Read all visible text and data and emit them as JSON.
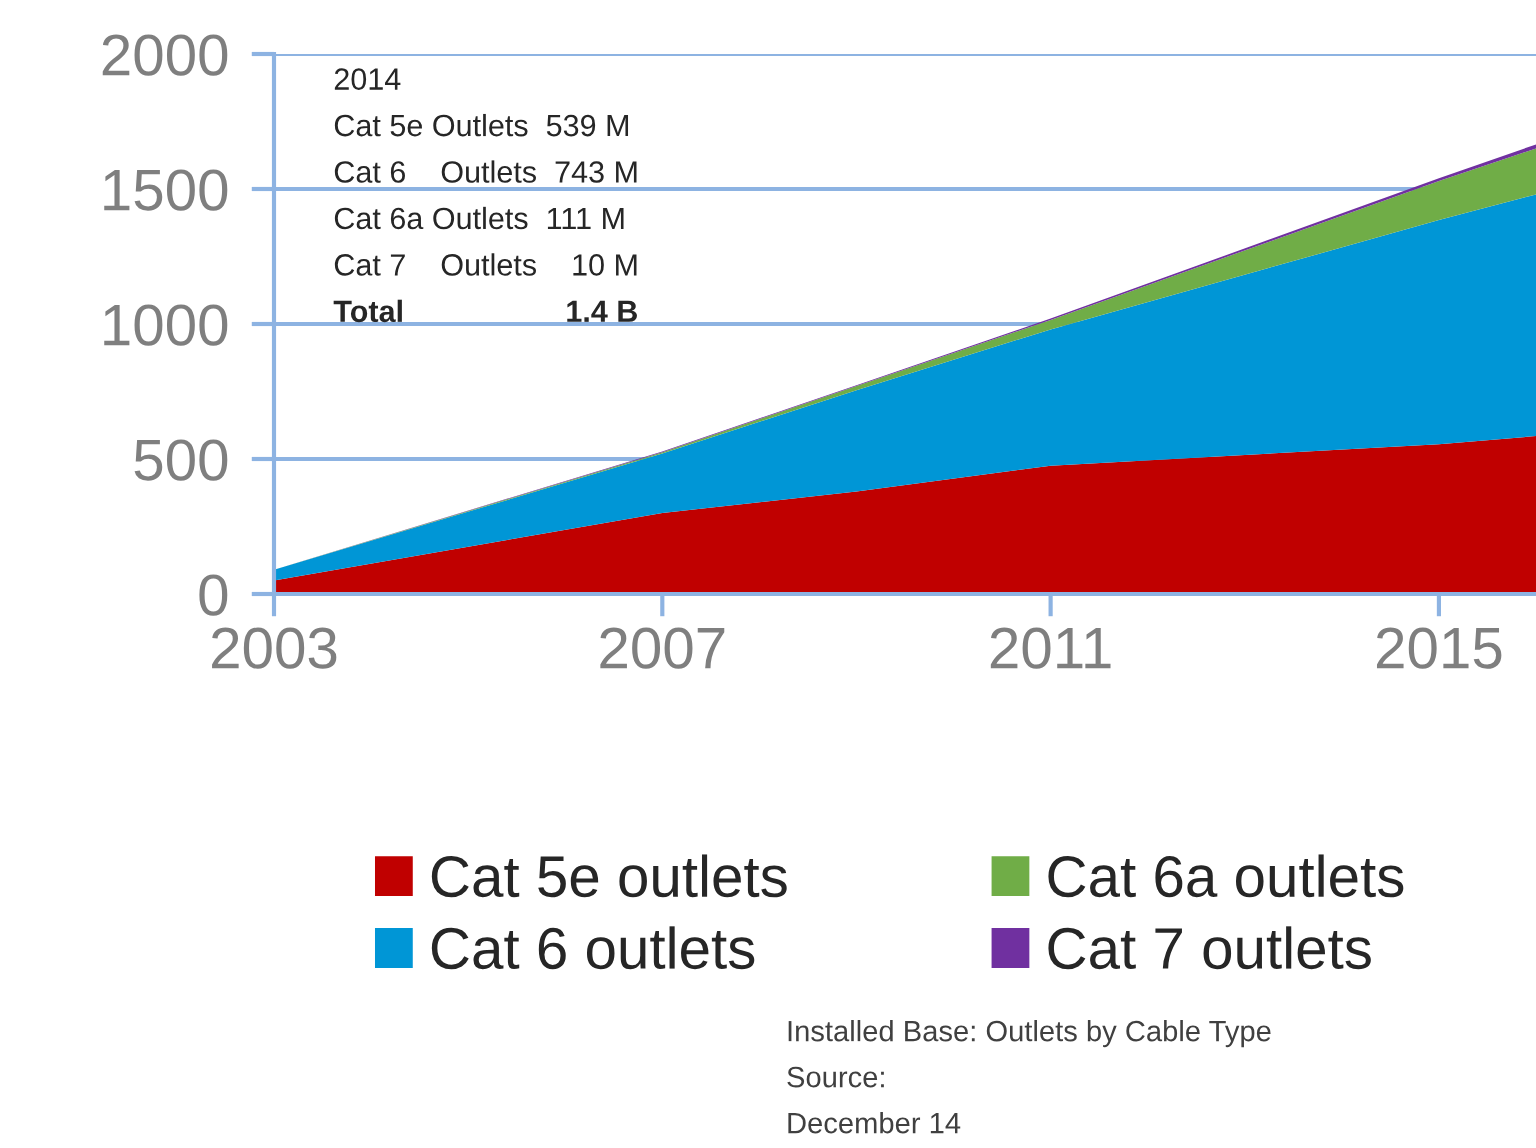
{
  "chart_data": {
    "type": "area",
    "stacked": true,
    "x": [
      2003,
      2007,
      2009,
      2011,
      2015,
      2016
    ],
    "series": [
      {
        "name": "Cat 5e outlets",
        "color": "#c00000",
        "values": [
          50,
          300,
          380,
          475,
          555,
          585
        ]
      },
      {
        "name": "Cat 6 outlets",
        "color": "#0096d6",
        "values": [
          40,
          220,
          375,
          505,
          830,
          895
        ]
      },
      {
        "name": "Cat 6a outlets",
        "color": "#70ad47",
        "values": [
          0,
          5,
          15,
          35,
          145,
          170
        ]
      },
      {
        "name": "Cat 7 outlets",
        "color": "#7030a0",
        "values": [
          0,
          3,
          3,
          5,
          10,
          15
        ]
      }
    ],
    "xlim": [
      2003,
      2016
    ],
    "xticks": [
      2003,
      2007,
      2011,
      2015
    ],
    "ylim": [
      0,
      2000
    ],
    "yticks": [
      0,
      500,
      1000,
      1500,
      2000
    ],
    "grid": "y",
    "legend": "bottom",
    "annotations": [
      "2014",
      "Cat 5e Outlets  539 M",
      "Cat 6    Outlets  743 M",
      "Cat 6a Outlets  111 M",
      "Cat 7    Outlets    10 M",
      "Total                   1.4 B",
      "Installed Base: Outlets by Cable Type",
      "Source:",
      "December 14"
    ]
  }
}
